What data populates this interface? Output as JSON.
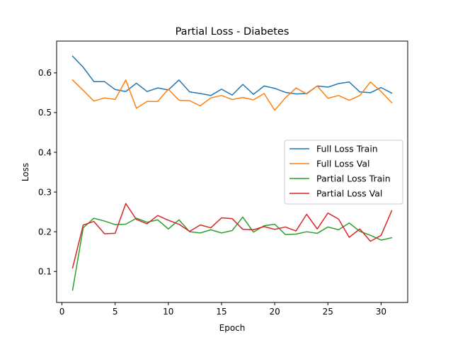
{
  "chart_data": {
    "type": "line",
    "title": "Partial Loss - Diabetes",
    "xlabel": "Epoch",
    "ylabel": "Loss",
    "xlim": [
      -0.5,
      32.5
    ],
    "ylim": [
      0.022,
      0.68
    ],
    "xticks": [
      0,
      5,
      10,
      15,
      20,
      25,
      30
    ],
    "yticks": [
      0.1,
      0.2,
      0.3,
      0.4,
      0.5,
      0.6
    ],
    "ytick_labels": [
      "0.1",
      "0.2",
      "0.3",
      "0.4",
      "0.5",
      "0.6"
    ],
    "grid": false,
    "legend_position": "center-right",
    "x": [
      1,
      2,
      3,
      4,
      5,
      6,
      7,
      8,
      9,
      10,
      11,
      12,
      13,
      14,
      15,
      16,
      17,
      18,
      19,
      20,
      21,
      22,
      23,
      24,
      25,
      26,
      27,
      28,
      29,
      30,
      31
    ],
    "series": [
      {
        "name": "Full Loss Train",
        "color": "#1f77b4",
        "values": [
          0.642,
          0.614,
          0.578,
          0.578,
          0.558,
          0.553,
          0.574,
          0.553,
          0.562,
          0.557,
          0.582,
          0.552,
          0.548,
          0.543,
          0.559,
          0.544,
          0.571,
          0.546,
          0.567,
          0.561,
          0.551,
          0.547,
          0.548,
          0.567,
          0.564,
          0.573,
          0.577,
          0.552,
          0.55,
          0.563,
          0.549
        ]
      },
      {
        "name": "Full Loss Val",
        "color": "#ff7f0e",
        "values": [
          0.582,
          0.556,
          0.529,
          0.537,
          0.533,
          0.582,
          0.511,
          0.528,
          0.528,
          0.559,
          0.531,
          0.53,
          0.517,
          0.537,
          0.543,
          0.533,
          0.538,
          0.532,
          0.548,
          0.506,
          0.537,
          0.562,
          0.547,
          0.567,
          0.536,
          0.543,
          0.531,
          0.543,
          0.577,
          0.553,
          0.525
        ]
      },
      {
        "name": "Partial Loss Train",
        "color": "#2ca02c",
        "values": [
          0.053,
          0.21,
          0.234,
          0.227,
          0.218,
          0.219,
          0.234,
          0.224,
          0.23,
          0.207,
          0.23,
          0.2,
          0.197,
          0.205,
          0.197,
          0.203,
          0.237,
          0.199,
          0.215,
          0.219,
          0.193,
          0.194,
          0.2,
          0.196,
          0.212,
          0.205,
          0.222,
          0.201,
          0.191,
          0.179,
          0.185
        ]
      },
      {
        "name": "Partial Loss Val",
        "color": "#d62728",
        "values": [
          0.109,
          0.217,
          0.226,
          0.195,
          0.196,
          0.271,
          0.231,
          0.22,
          0.241,
          0.229,
          0.219,
          0.201,
          0.217,
          0.21,
          0.235,
          0.233,
          0.206,
          0.205,
          0.213,
          0.206,
          0.212,
          0.202,
          0.244,
          0.207,
          0.247,
          0.232,
          0.186,
          0.207,
          0.176,
          0.191,
          0.253
        ]
      }
    ]
  }
}
